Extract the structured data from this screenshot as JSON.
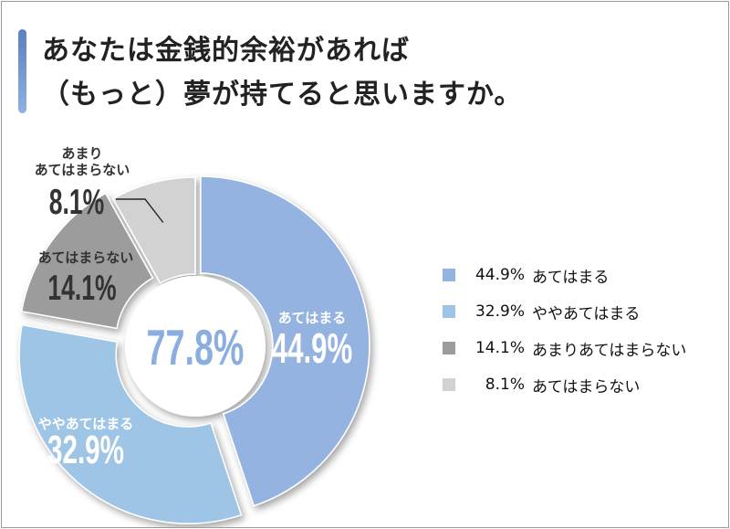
{
  "title": {
    "line1": "あなたは金銭的余裕があれば",
    "line2": "（もっと）夢が持てると思いますか。"
  },
  "center_label": "77.8%",
  "chart_data": {
    "type": "pie",
    "title": "あなたは金銭的余裕があれば（もっと）夢が持てると思いますか。",
    "categories": [
      "あてはまる",
      "ややあてはまる",
      "あまりあてはまらない",
      "あてはまらない"
    ],
    "values": [
      44.9,
      32.9,
      14.1,
      8.1
    ],
    "value_labels": [
      "44.9%",
      "32.9%",
      "14.1%",
      "8.1%"
    ],
    "slice_labels": [
      "あてはまる",
      "ややあてはまる",
      "あてはまらない",
      "あまり\nあてはまらない"
    ],
    "legend": [
      {
        "value": "44.9%",
        "label": "あてはまる"
      },
      {
        "value": "32.9%",
        "label": "ややあてはまる"
      },
      {
        "value": "14.1%",
        "label": "あまりあてはまらない"
      },
      {
        "value": "8.1%",
        "label": "あてはまらない"
      }
    ],
    "colors": [
      "#94b3e0",
      "#9fc5e6",
      "#9c9c9c",
      "#d2d2d2"
    ],
    "donut": true,
    "legend_position": "right"
  }
}
